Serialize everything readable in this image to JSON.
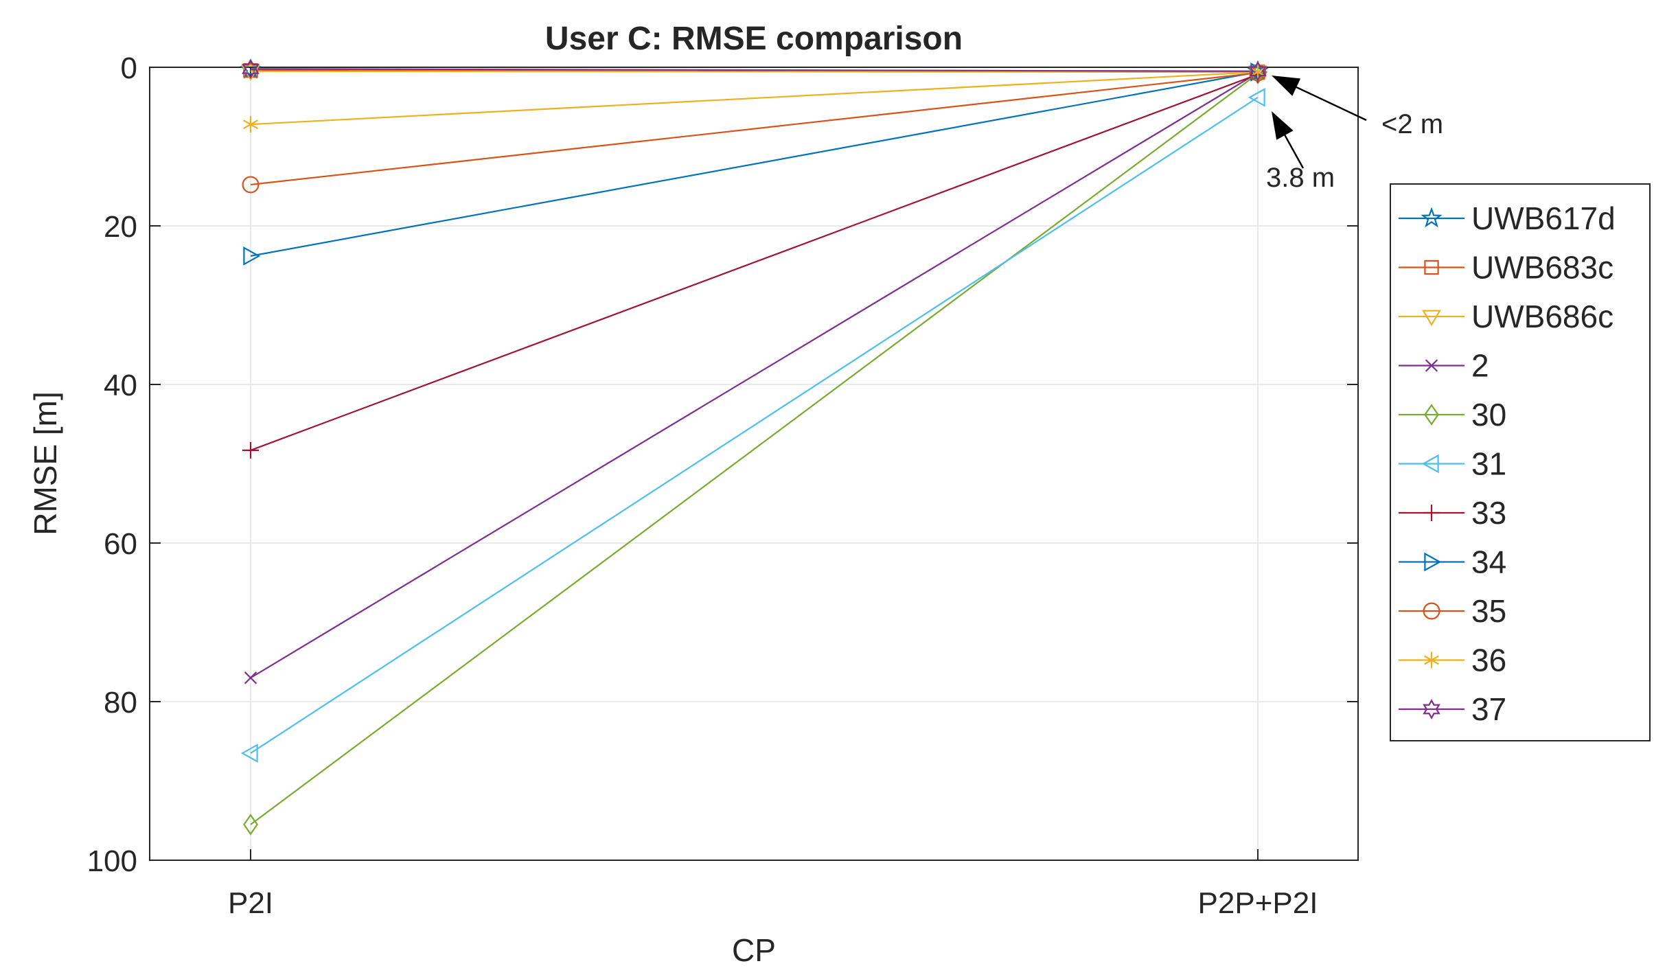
{
  "chart_data": {
    "type": "line",
    "title": "User C: RMSE comparison",
    "xlabel": "CP",
    "ylabel": "RMSE [m]",
    "categories": [
      "P2I",
      "P2P+P2I"
    ],
    "ylim": [
      0,
      100
    ],
    "y_reversed": true,
    "yticks": [
      0,
      20,
      40,
      60,
      80,
      100
    ],
    "grid": true,
    "legend_position": "outside-right",
    "series": [
      {
        "name": "UWB617d",
        "values": [
          0.3,
          0.5
        ],
        "marker": "pentagram",
        "color": "#0072BD"
      },
      {
        "name": "UWB683c",
        "values": [
          0.4,
          0.6
        ],
        "marker": "square",
        "color": "#D95319"
      },
      {
        "name": "UWB686c",
        "values": [
          0.5,
          0.6
        ],
        "marker": "triangle-down",
        "color": "#EDB120"
      },
      {
        "name": "2",
        "values": [
          77,
          0.7
        ],
        "marker": "x",
        "color": "#7E2F8E"
      },
      {
        "name": "30",
        "values": [
          95.5,
          0.8
        ],
        "marker": "diamond",
        "color": "#77AC30"
      },
      {
        "name": "31",
        "values": [
          86.5,
          3.8
        ],
        "marker": "triangle-left",
        "color": "#4DBEEE"
      },
      {
        "name": "33",
        "values": [
          48.3,
          0.9
        ],
        "marker": "plus",
        "color": "#A2142F"
      },
      {
        "name": "34",
        "values": [
          23.8,
          0.6
        ],
        "marker": "triangle-right",
        "color": "#0072BD"
      },
      {
        "name": "35",
        "values": [
          14.8,
          0.7
        ],
        "marker": "circle",
        "color": "#D95319"
      },
      {
        "name": "36",
        "values": [
          7.2,
          0.6
        ],
        "marker": "asterisk",
        "color": "#EDB120"
      },
      {
        "name": "37",
        "values": [
          0.2,
          0.5
        ],
        "marker": "hexagram",
        "color": "#7E2F8E"
      }
    ],
    "annotations": [
      {
        "text": "<2 m",
        "x": "P2P+P2I",
        "y": 0.7
      },
      {
        "text": "3.8 m",
        "x": "P2P+P2I",
        "y": 3.8
      }
    ]
  }
}
